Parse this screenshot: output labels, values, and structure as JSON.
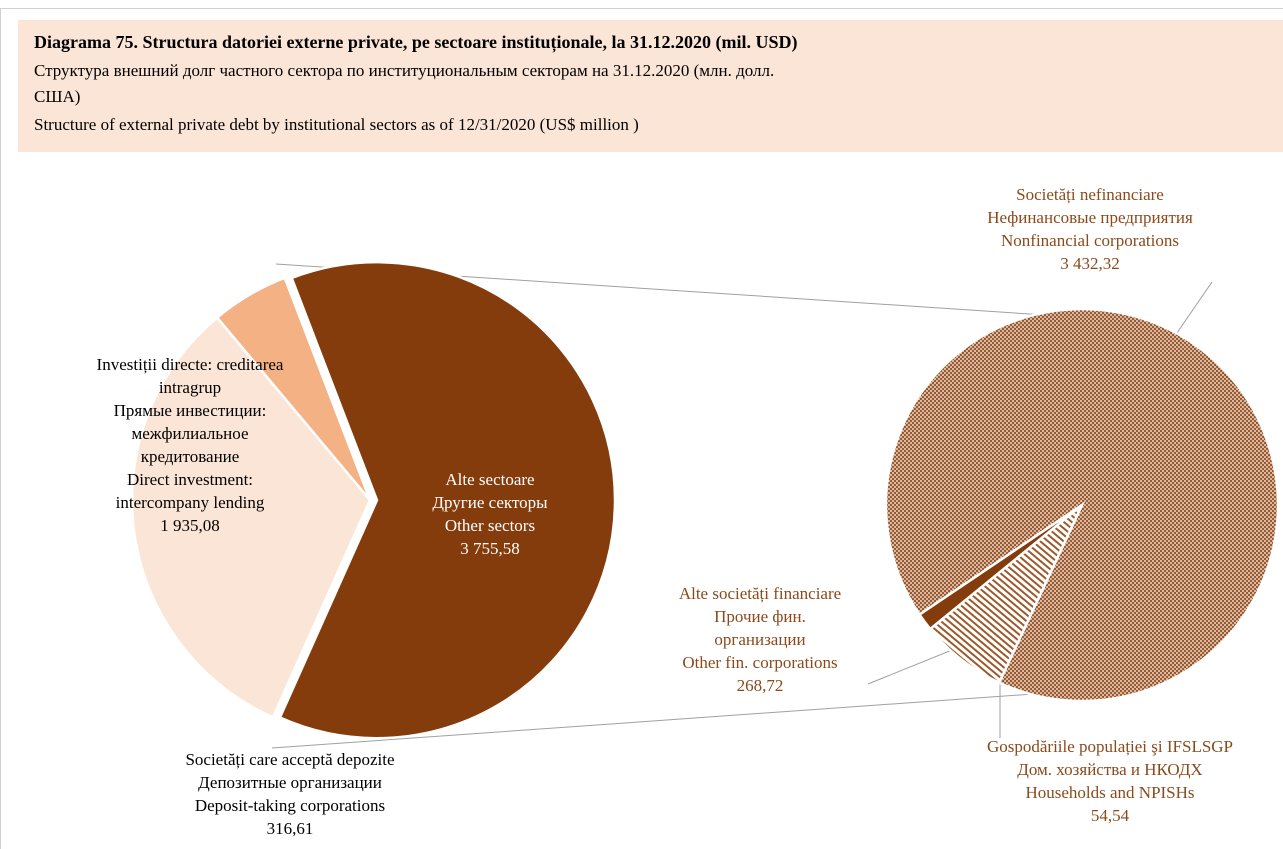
{
  "chart_data": [
    {
      "type": "pie",
      "title": "Diagrama 75. Structura datoriei externe private, pe sectoare instituționale, la 31.12.2020  (mil. USD)",
      "subtitles": [
        "Структура  внешний долг частного сектора по институциональным секторам на 31.12.2020  (млн. долл.",
        "США)",
        "Structure of external private debt by institutional sectors as of 12/31/2020 (US$ million )"
      ],
      "categories": [
        [
          "Alte sectoare",
          "Другие секторы",
          "Other sectors"
        ],
        [
          "Investiții directe: creditarea",
          "intragrup",
          "Прямые инвестиции:",
          "межфилиальное",
          "кредитование",
          "Direct investment:",
          "intercompany lending"
        ],
        [
          "Societăți care acceptă depozite",
          "Депозитные организации",
          "Deposit-taking corporations"
        ]
      ],
      "values": [
        3755.58,
        1935.08,
        316.61
      ],
      "value_labels": [
        "3 755,58",
        "1 935,08",
        "316,61"
      ],
      "colors": [
        "#843c0c",
        "#fbe5d6",
        "#f4b183"
      ]
    },
    {
      "type": "pie",
      "categories": [
        [
          "Societăți nefinanciare",
          "Нефинансовые предприятия",
          "Nonfinancial corporations"
        ],
        [
          "Alte societăți financiare",
          "Прочие фин.",
          "организации",
          "Other fin. corporations"
        ],
        [
          "Gospodăriile populației şi IFSLSGP",
          "Дом. хозяйства и НКОДХ",
          "Households and NPISHs"
        ]
      ],
      "values": [
        3432.32,
        268.72,
        54.54
      ],
      "value_labels": [
        "3 432,32",
        "268,72",
        "54,54"
      ],
      "colors": [
        "#9c5a2c",
        "#9c5a2c",
        "#843c0c"
      ],
      "fill_styles": [
        "dots",
        "hatch",
        "solid"
      ]
    }
  ]
}
